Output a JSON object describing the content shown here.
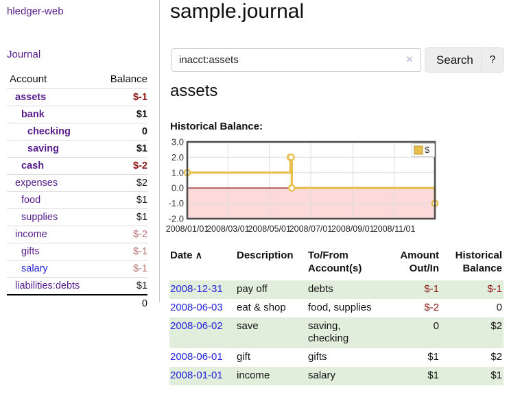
{
  "sidebar": {
    "brand": "hledger-web",
    "nav_journal": "Journal",
    "accounts_header": {
      "account": "Account",
      "balance": "Balance"
    },
    "accounts": [
      {
        "name": "assets",
        "indent": 1,
        "bold": true,
        "balance": "$-1",
        "balance_class": "neg"
      },
      {
        "name": "bank",
        "indent": 2,
        "bold": true,
        "balance": "$1",
        "balance_class": ""
      },
      {
        "name": "checking",
        "indent": 3,
        "bold": true,
        "balance": "0",
        "balance_class": ""
      },
      {
        "name": "saving",
        "indent": 3,
        "bold": true,
        "balance": "$1",
        "balance_class": ""
      },
      {
        "name": "cash",
        "indent": 2,
        "bold": true,
        "balance": "$-2",
        "balance_class": "neg"
      },
      {
        "name": "expenses",
        "indent": 1,
        "bold": false,
        "balance": "$2",
        "balance_class": ""
      },
      {
        "name": "food",
        "indent": 2,
        "bold": false,
        "balance": "$1",
        "balance_class": ""
      },
      {
        "name": "supplies",
        "indent": 2,
        "bold": false,
        "balance": "$1",
        "balance_class": ""
      },
      {
        "name": "income",
        "indent": 1,
        "bold": false,
        "balance": "$-2",
        "balance_class": "soft"
      },
      {
        "name": "gifts",
        "indent": 2,
        "bold": false,
        "balance": "$-1",
        "balance_class": "soft"
      },
      {
        "name": "salary",
        "indent": 2,
        "bold": false,
        "balance": "$-1",
        "balance_class": "soft",
        "blue": true
      },
      {
        "name": "liabilities:debts",
        "indent": 1,
        "bold": false,
        "balance": "$1",
        "balance_class": ""
      }
    ],
    "total": "0"
  },
  "header": {
    "title": "sample.journal"
  },
  "search": {
    "value": "inacct:assets",
    "clear_icon": "×",
    "button_label": "Search",
    "help_label": "?"
  },
  "account_page": {
    "title": "assets",
    "chart_label": "Historical Balance:"
  },
  "chart_data": {
    "type": "line",
    "title": "Historical Balance",
    "step": "after",
    "series": [
      {
        "name": "$",
        "color": "#e7bf4a",
        "points": [
          [
            "2008-01-01",
            1
          ],
          [
            "2008-06-01",
            2
          ],
          [
            "2008-06-02",
            2
          ],
          [
            "2008-06-03",
            0
          ],
          [
            "2008-12-31",
            -1
          ]
        ]
      }
    ],
    "x_range": [
      "2008-01-01",
      "2008-12-31"
    ],
    "x_ticks": [
      "2008/01/01",
      "2008/03/01",
      "2008/05/01",
      "2008/07/01",
      "2008/09/01",
      "2008/11/01"
    ],
    "y_ticks": [
      3.0,
      2.0,
      1.0,
      0.0,
      -1.0,
      -2.0
    ],
    "y_gridlines": [
      2,
      1,
      -1
    ],
    "ylim": [
      -2,
      3
    ],
    "grid": true,
    "legend": {
      "label": "$",
      "position": "top-right"
    },
    "negative_region_color": "#fcdada",
    "zero_line_color": "#8b1a1a"
  },
  "register": {
    "columns": [
      "Date",
      "Description",
      "To/From Account(s)",
      "Amount Out/In",
      "Historical Balance"
    ],
    "sort_indicator": "∧",
    "rows": [
      {
        "date": "2008-12-31",
        "description": "pay off",
        "accounts": "debts",
        "amount": "$-1",
        "amount_class": "neg",
        "balance": "$-1",
        "balance_class": "neg"
      },
      {
        "date": "2008-06-03",
        "description": "eat & shop",
        "accounts": "food, supplies",
        "amount": "$-2",
        "amount_class": "neg",
        "balance": "0",
        "balance_class": ""
      },
      {
        "date": "2008-06-02",
        "description": "save",
        "accounts": "saving, checking",
        "amount": "0",
        "amount_class": "",
        "balance": "$2",
        "balance_class": ""
      },
      {
        "date": "2008-06-01",
        "description": "gift",
        "accounts": "gifts",
        "amount": "$1",
        "amount_class": "",
        "balance": "$2",
        "balance_class": ""
      },
      {
        "date": "2008-01-01",
        "description": "income",
        "accounts": "salary",
        "amount": "$1",
        "amount_class": "",
        "balance": "$1",
        "balance_class": ""
      }
    ]
  },
  "colors": {
    "accent_purple": "#571c8c",
    "link_blue": "#2323dd",
    "negative_red": "#8b1212",
    "soft_negative_red": "#b97575",
    "row_green": "#e2eedc",
    "chart_gold": "#e7bf4a",
    "chart_negative_pink": "#fcdada",
    "chart_zero_line": "#8b1a1a"
  }
}
